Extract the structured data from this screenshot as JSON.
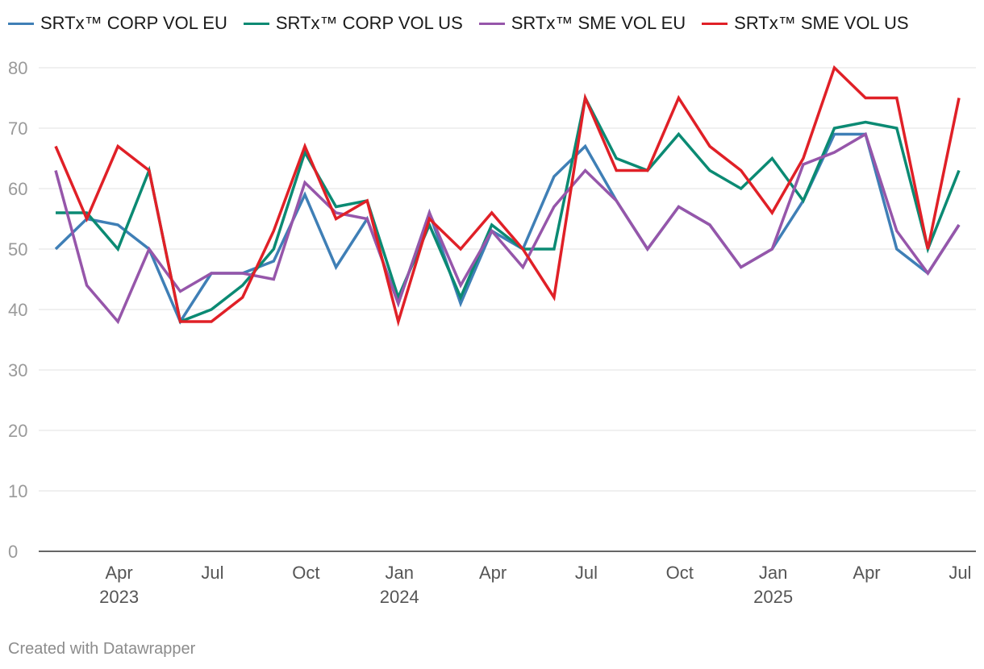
{
  "chart_data": {
    "type": "line",
    "title": "",
    "xlabel": "",
    "ylabel": "",
    "ylim": [
      0,
      80
    ],
    "yticks": [
      "0",
      "10",
      "20",
      "30",
      "40",
      "50",
      "60",
      "70",
      "80"
    ],
    "grid": true,
    "legend_position": "top-left",
    "x": [
      "2023-03",
      "2023-04",
      "2023-05",
      "2023-06",
      "2023-07",
      "2023-08",
      "2023-09",
      "2023-10",
      "2023-11",
      "2023-12",
      "2024-01",
      "2024-02",
      "2024-03",
      "2024-04",
      "2024-05",
      "2024-06",
      "2024-07",
      "2024-08",
      "2024-09",
      "2024-10",
      "2024-11",
      "2024-12",
      "2025-01",
      "2025-02",
      "2025-03",
      "2025-04",
      "2025-05",
      "2025-06",
      "2025-07",
      "2025-08"
    ],
    "x_tick_labels": [
      {
        "index": 1,
        "month": "Apr",
        "year": "2023"
      },
      {
        "index": 4,
        "month": "Jul",
        "year": ""
      },
      {
        "index": 7,
        "month": "Oct",
        "year": ""
      },
      {
        "index": 10,
        "month": "Jan",
        "year": "2024"
      },
      {
        "index": 13,
        "month": "Apr",
        "year": ""
      },
      {
        "index": 16,
        "month": "Jul",
        "year": ""
      },
      {
        "index": 19,
        "month": "Oct",
        "year": ""
      },
      {
        "index": 22,
        "month": "Jan",
        "year": "2025"
      },
      {
        "index": 25,
        "month": "Apr",
        "year": ""
      },
      {
        "index": 28,
        "month": "Jul",
        "year": ""
      }
    ],
    "series": [
      {
        "name": "SRTx™ CORP VOL EU",
        "color": "#3f7fb6",
        "values": [
          50,
          55,
          54,
          50,
          38,
          46,
          46,
          48,
          59,
          47,
          55,
          41,
          56,
          41,
          53,
          50,
          62,
          67,
          58,
          50,
          57,
          54,
          47,
          50,
          58,
          69,
          69,
          50,
          46,
          54
        ]
      },
      {
        "name": "SRTx™ CORP VOL US",
        "color": "#0b8a73",
        "values": [
          56,
          56,
          50,
          63,
          38,
          40,
          44,
          50,
          66,
          57,
          58,
          42,
          54,
          42,
          54,
          50,
          50,
          75,
          65,
          63,
          69,
          63,
          60,
          65,
          58,
          70,
          71,
          70,
          50,
          63
        ]
      },
      {
        "name": "SRTx™ SME VOL EU",
        "color": "#9656aa",
        "values": [
          63,
          44,
          38,
          50,
          43,
          46,
          46,
          45,
          61,
          56,
          55,
          41,
          56,
          44,
          53,
          47,
          57,
          63,
          58,
          50,
          57,
          54,
          47,
          50,
          64,
          66,
          69,
          53,
          46,
          54
        ]
      },
      {
        "name": "SRTx™ SME VOL US",
        "color": "#e02027",
        "values": [
          67,
          55,
          67,
          63,
          38,
          38,
          42,
          53,
          67,
          55,
          58,
          38,
          55,
          50,
          56,
          50,
          42,
          75,
          63,
          63,
          75,
          67,
          63,
          56,
          65,
          80,
          75,
          75,
          50,
          75
        ]
      }
    ]
  },
  "footer": "Created with Datawrapper"
}
